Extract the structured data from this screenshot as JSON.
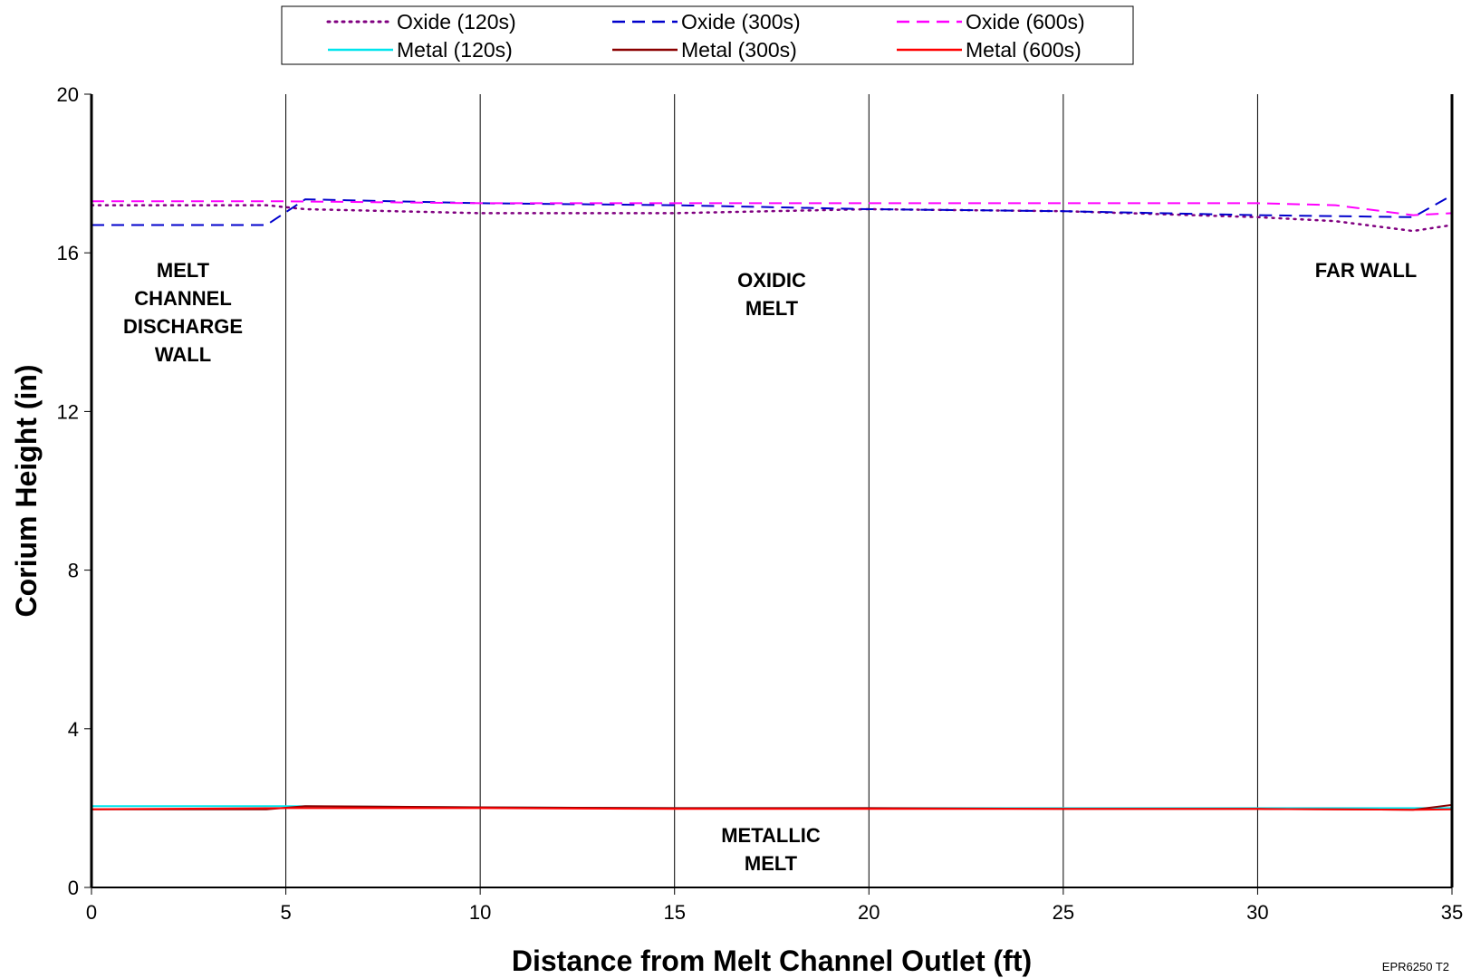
{
  "chart_data": {
    "type": "line",
    "xlabel": "Distance from Melt Channel Outlet (ft)",
    "ylabel": "Corium Height (in)",
    "xlim": [
      0,
      35
    ],
    "ylim": [
      0,
      20
    ],
    "x_ticks": [
      0,
      5,
      10,
      15,
      20,
      25,
      30,
      35
    ],
    "y_ticks": [
      0,
      4,
      8,
      12,
      16,
      20
    ],
    "vertical_grid": true,
    "horizontal_grid": false,
    "legend_position": "top-center",
    "legend_columns": 3,
    "series": [
      {
        "name": "Oxide (120s)",
        "color": "#800080",
        "dash": "dotted",
        "x": [
          0,
          4.5,
          5.5,
          10,
          15,
          20,
          25,
          30,
          32,
          34,
          35
        ],
        "y": [
          17.2,
          17.2,
          17.1,
          17.0,
          17.0,
          17.1,
          17.05,
          16.9,
          16.8,
          16.55,
          16.7
        ]
      },
      {
        "name": "Oxide (300s)",
        "color": "#0000cc",
        "dash": "dashed",
        "x": [
          0,
          4.5,
          5.5,
          10,
          15,
          20,
          25,
          30,
          34,
          35
        ],
        "y": [
          16.7,
          16.7,
          17.35,
          17.25,
          17.2,
          17.1,
          17.05,
          16.95,
          16.9,
          17.45
        ]
      },
      {
        "name": "Oxide (600s)",
        "color": "#ff00ff",
        "dash": "dashed",
        "x": [
          0,
          5,
          10,
          15,
          20,
          25,
          30,
          32,
          34,
          35
        ],
        "y": [
          17.3,
          17.3,
          17.25,
          17.25,
          17.25,
          17.25,
          17.25,
          17.2,
          16.95,
          17.0
        ]
      },
      {
        "name": "Metal (120s)",
        "color": "#00e5ee",
        "dash": "solid",
        "x": [
          0,
          5,
          10,
          15,
          20,
          25,
          30,
          35
        ],
        "y": [
          2.05,
          2.05,
          2.02,
          2.0,
          2.0,
          2.0,
          2.0,
          2.0
        ]
      },
      {
        "name": "Metal (300s)",
        "color": "#8b0000",
        "dash": "solid",
        "x": [
          0,
          4.5,
          5.5,
          10,
          15,
          20,
          25,
          30,
          34,
          35
        ],
        "y": [
          1.97,
          1.97,
          2.05,
          2.02,
          2.0,
          2.0,
          1.98,
          1.98,
          1.96,
          2.08
        ]
      },
      {
        "name": "Metal (600s)",
        "color": "#ff0000",
        "dash": "solid",
        "x": [
          0,
          5,
          10,
          15,
          20,
          25,
          30,
          34,
          35
        ],
        "y": [
          1.97,
          2.0,
          2.0,
          1.98,
          1.98,
          1.98,
          1.98,
          1.96,
          1.97
        ]
      }
    ],
    "annotations": [
      {
        "id": "melt-channel-discharge-wall",
        "lines": [
          "MELT",
          "CHANNEL",
          "DISCHARGE",
          "WALL"
        ]
      },
      {
        "id": "oxidic-melt",
        "lines": [
          "OXIDIC",
          "MELT"
        ]
      },
      {
        "id": "far-wall",
        "lines": [
          "FAR WALL"
        ]
      },
      {
        "id": "metallic-melt",
        "lines": [
          "METALLIC",
          "MELT"
        ]
      }
    ],
    "footnote": "EPR6250 T2"
  }
}
